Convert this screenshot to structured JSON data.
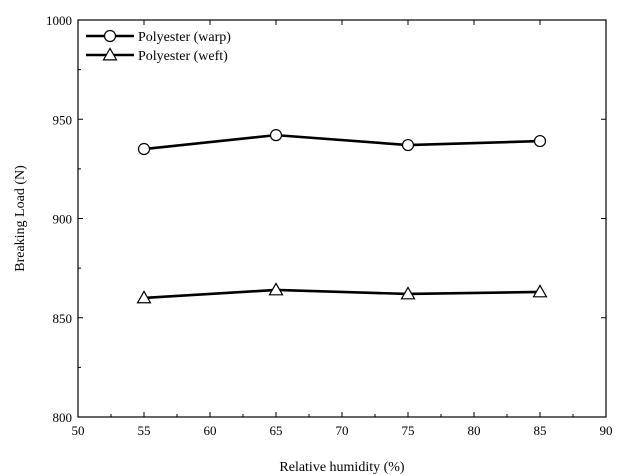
{
  "chart_data": {
    "type": "line",
    "xlabel": "Relative humidity (%)",
    "ylabel": "Breaking Load (N)",
    "xlim": [
      50,
      90
    ],
    "ylim": [
      800,
      1000
    ],
    "x_ticks": [
      50,
      55,
      60,
      65,
      70,
      75,
      80,
      85,
      90
    ],
    "y_ticks": [
      800,
      850,
      900,
      950,
      1000
    ],
    "x_tick_labels": [
      "50",
      "55",
      "60",
      "65",
      "70",
      "75",
      "80",
      "85",
      "90"
    ],
    "y_tick_labels": [
      "800",
      "850",
      "900",
      "950",
      "1000"
    ],
    "grid": false,
    "legend_position": "top-left",
    "series": [
      {
        "name": "Polyester (warp)",
        "marker": "circle",
        "color": "#000000",
        "x": [
          55,
          65,
          75,
          85
        ],
        "y": [
          935,
          942,
          937,
          939
        ]
      },
      {
        "name": "Polyester (weft)",
        "marker": "triangle",
        "color": "#000000",
        "x": [
          55,
          65,
          75,
          85
        ],
        "y": [
          860,
          864,
          862,
          863
        ]
      }
    ]
  }
}
